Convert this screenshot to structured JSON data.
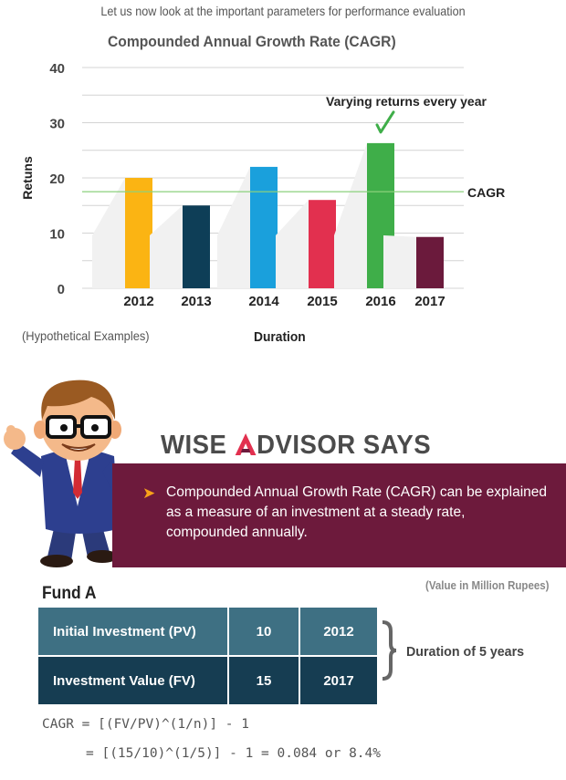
{
  "intro": "Let us now look at the important parameters for performance evaluation",
  "chart_data": {
    "type": "bar",
    "title": "Compounded Annual Growth Rate (CAGR)",
    "xlabel": "Duration",
    "ylabel": "Retuns",
    "categories": [
      "2012",
      "2013",
      "2014",
      "2015",
      "2016",
      "2017"
    ],
    "values": [
      20,
      15,
      22,
      16,
      26.3,
      9.3
    ],
    "colors": [
      "#fbb413",
      "#0e3e57",
      "#1aa0dc",
      "#e2304f",
      "#3fae49",
      "#6b1a3c"
    ],
    "ylim": [
      0,
      40
    ],
    "yticks": [
      0,
      10,
      20,
      30,
      40
    ],
    "grid": true,
    "cagr_line": {
      "value": 17.5,
      "label": "CAGR",
      "color": "#8bd17c"
    },
    "annotation": {
      "text": "Varying returns every year",
      "category": "2016",
      "color": "#3fae49"
    }
  },
  "footnote": "(Hypothetical Examples)",
  "advisor": {
    "heading_part1": "WISE ",
    "heading_logo_letter": "A",
    "heading_part2": "DVISOR SAYS",
    "bullet": "➤",
    "text": "Compounded Annual Growth Rate (CAGR)  can be explained as a measure of an investment at a steady rate, compounded annually.",
    "panel_color": "#6d1a3c"
  },
  "fund": {
    "title": "Fund A",
    "unit_note": "(Value in Million Rupees)",
    "rows": [
      {
        "label": "Initial Investment (PV)",
        "value": "10",
        "year": "2012"
      },
      {
        "label": "Investment Value (FV)",
        "value": "15",
        "year": "2017"
      }
    ],
    "duration_note": "Duration of 5 years"
  },
  "formula": {
    "line1": "CAGR = [(FV/PV)^(1/n)] - 1",
    "line2": "= [(15/10)^(1/5)] - 1 = 0.084 or 8.4%"
  }
}
